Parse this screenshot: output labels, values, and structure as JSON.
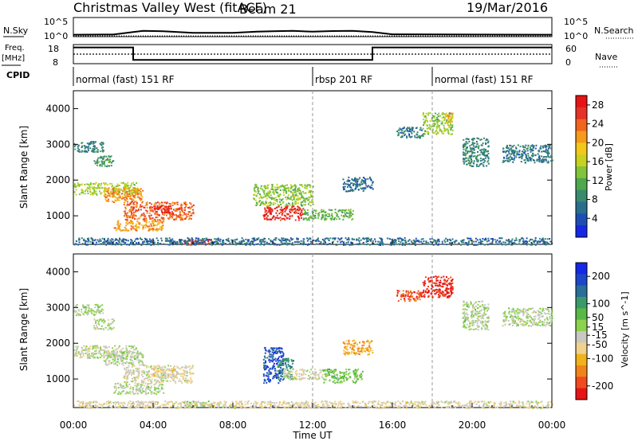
{
  "header": {
    "title": "Christmas Valley West (fitACF)",
    "beam": "Beam 21",
    "date": "19/Mar/2016"
  },
  "strip_labels": {
    "nsky": "N.Sky",
    "nsky_ticks": [
      "10^5",
      "10^0"
    ],
    "nsearch": "N.Search",
    "nsearch_ticks": [
      "10^5",
      "10^0"
    ],
    "freq": "Freq.",
    "freq_unit": "[MHz]",
    "freq_ticks": [
      "18",
      "8"
    ],
    "nave": "Nave",
    "nave_ticks": [
      "60",
      "0"
    ],
    "cpid": "CPID"
  },
  "cpid_segments": [
    {
      "label": "normal (fast) 151 RF",
      "start_h": 0,
      "end_h": 12
    },
    {
      "label": "rbsp 201 RF",
      "start_h": 12,
      "end_h": 18
    },
    {
      "label": "normal (fast) 151 RF",
      "start_h": 18,
      "end_h": 24
    }
  ],
  "x_axis": {
    "label": "Time UT",
    "ticks": [
      "00:00",
      "04:00",
      "08:00",
      "12:00",
      "16:00",
      "20:00",
      "00:00"
    ]
  },
  "colors": {
    "power_scale": [
      "#1428e6",
      "#1e4eb4",
      "#2a6e8c",
      "#3a8a6e",
      "#4ea84e",
      "#82c43a",
      "#c8d21e",
      "#f2c81a",
      "#f59a1a",
      "#f0641e",
      "#e63228",
      "#e61414"
    ],
    "velocity_scale": [
      "#e61414",
      "#f04a1e",
      "#f0841a",
      "#f2b21c",
      "#f0d28c",
      "#c8c8c0",
      "#8cd24e",
      "#5ab846",
      "#3a9a6a",
      "#2a6e9a",
      "#1e46c8",
      "#1428e6"
    ]
  },
  "chart_data": [
    {
      "type": "line",
      "name": "nsky-nsearch-strip",
      "x_unit": "hours UT",
      "log_scale": true,
      "left_ticks": [
        "10^5",
        "10^0"
      ],
      "right_ticks": [
        "10^5",
        "10^0"
      ],
      "series": [
        {
          "name": "N.Sky",
          "x": [
            0,
            2,
            3,
            3.5,
            4.5,
            6,
            8,
            9.2,
            10,
            11,
            12,
            13,
            14,
            15,
            16,
            20,
            24
          ],
          "y_log": [
            0.5,
            0.55,
            1.2,
            1.5,
            1.4,
            1.0,
            1.0,
            1.3,
            1.4,
            1.5,
            1.3,
            1.45,
            1.5,
            1.2,
            0.6,
            0.55,
            0.5
          ]
        },
        {
          "name": "N.Search",
          "x": [
            0,
            24
          ],
          "y_log": [
            0.2,
            0.2
          ]
        }
      ]
    },
    {
      "type": "line",
      "name": "freq-nave-strip",
      "x_unit": "hours UT",
      "series": [
        {
          "name": "Freq. [MHz]",
          "x": [
            0,
            3,
            3,
            15,
            15,
            24
          ],
          "y": [
            16.5,
            16.5,
            10,
            10,
            16.5,
            16.5
          ],
          "ylim": [
            8,
            18
          ]
        },
        {
          "name": "Nave",
          "x": [
            0,
            24
          ],
          "y": [
            30,
            30
          ],
          "ylim": [
            0,
            60
          ]
        }
      ]
    },
    {
      "type": "heatmap",
      "name": "power",
      "xlabel": "Time UT",
      "ylabel": "Slant Range [km]",
      "xlim": [
        0,
        24
      ],
      "ylim": [
        200,
        4500
      ],
      "yticks": [
        1000,
        2000,
        3000,
        4000
      ],
      "colorbar": {
        "label": "Power [dB]",
        "ticks": [
          4,
          8,
          12,
          16,
          20,
          24,
          28
        ],
        "range": [
          0,
          30
        ]
      },
      "regions": [
        {
          "t0": 0.0,
          "t1": 3.2,
          "r0": 1600,
          "r1": 1950,
          "v": 15
        },
        {
          "t0": 1.5,
          "t1": 3.5,
          "r0": 1400,
          "r1": 1800,
          "v": 22
        },
        {
          "t0": 2.5,
          "t1": 6.0,
          "r0": 900,
          "r1": 1400,
          "v": 24
        },
        {
          "t0": 4.0,
          "t1": 5.0,
          "r0": 1100,
          "r1": 1300,
          "v": 28
        },
        {
          "t0": 2.0,
          "t1": 4.5,
          "r0": 600,
          "r1": 900,
          "v": 21
        },
        {
          "t0": 0.0,
          "t1": 1.5,
          "r0": 2800,
          "r1": 3100,
          "v": 8
        },
        {
          "t0": 1.0,
          "t1": 2.0,
          "r0": 2400,
          "r1": 2700,
          "v": 10
        },
        {
          "t0": 9.5,
          "t1": 11.5,
          "r0": 900,
          "r1": 1300,
          "v": 27
        },
        {
          "t0": 9.0,
          "t1": 12.0,
          "r0": 1300,
          "r1": 1900,
          "v": 14
        },
        {
          "t0": 11.5,
          "t1": 14.0,
          "r0": 900,
          "r1": 1200,
          "v": 12
        },
        {
          "t0": 5.5,
          "t1": 7.0,
          "r0": 200,
          "r1": 350,
          "v": 26
        },
        {
          "t0": 0.0,
          "t1": 24.0,
          "r0": 200,
          "r1": 400,
          "v": 6
        },
        {
          "t0": 16.2,
          "t1": 17.5,
          "r0": 3200,
          "r1": 3500,
          "v": 7
        },
        {
          "t0": 17.5,
          "t1": 19.0,
          "r0": 3300,
          "r1": 3900,
          "v": 14
        },
        {
          "t0": 18.6,
          "t1": 19.0,
          "r0": 3600,
          "r1": 3900,
          "v": 20
        },
        {
          "t0": 19.5,
          "t1": 20.8,
          "r0": 2400,
          "r1": 3200,
          "v": 8
        },
        {
          "t0": 21.5,
          "t1": 24.0,
          "r0": 2500,
          "r1": 3000,
          "v": 7
        },
        {
          "t0": 13.5,
          "t1": 15.0,
          "r0": 1700,
          "r1": 2100,
          "v": 6
        }
      ]
    },
    {
      "type": "heatmap",
      "name": "velocity",
      "xlabel": "Time UT",
      "ylabel": "Slant Range [km]",
      "xlim": [
        0,
        24
      ],
      "ylim": [
        200,
        4500
      ],
      "yticks": [
        1000,
        2000,
        3000,
        4000
      ],
      "colorbar": {
        "label": "Velocity [m s^-1]",
        "ticks": [
          200,
          100,
          50,
          15,
          -15,
          -50,
          -100,
          -200
        ],
        "range": [
          -250,
          250
        ]
      },
      "regions": [
        {
          "t0": 0.0,
          "t1": 3.2,
          "r0": 1600,
          "r1": 1950,
          "v": -20
        },
        {
          "t0": 1.5,
          "t1": 3.5,
          "r0": 1400,
          "r1": 1800,
          "v": 0
        },
        {
          "t0": 2.5,
          "t1": 6.0,
          "r0": 900,
          "r1": 1400,
          "v": -30
        },
        {
          "t0": 4.0,
          "t1": 5.0,
          "r0": 1100,
          "r1": 1300,
          "v": -60
        },
        {
          "t0": 2.0,
          "t1": 4.5,
          "r0": 600,
          "r1": 900,
          "v": 0
        },
        {
          "t0": 0.0,
          "t1": 1.5,
          "r0": 2800,
          "r1": 3100,
          "v": 0
        },
        {
          "t0": 1.0,
          "t1": 2.0,
          "r0": 2400,
          "r1": 2700,
          "v": -5
        },
        {
          "t0": 9.5,
          "t1": 10.5,
          "r0": 900,
          "r1": 1900,
          "v": 180
        },
        {
          "t0": 10.2,
          "t1": 11.0,
          "r0": 1000,
          "r1": 1600,
          "v": 120
        },
        {
          "t0": 10.5,
          "t1": 12.5,
          "r0": 1000,
          "r1": 1300,
          "v": -25
        },
        {
          "t0": 12.5,
          "t1": 14.5,
          "r0": 900,
          "r1": 1300,
          "v": 40
        },
        {
          "t0": 5.5,
          "t1": 7.0,
          "r0": 250,
          "r1": 400,
          "v": 30
        },
        {
          "t0": 0.0,
          "t1": 24.0,
          "r0": 200,
          "r1": 400,
          "v": -40
        },
        {
          "t0": 16.2,
          "t1": 17.5,
          "r0": 3200,
          "r1": 3500,
          "v": -180
        },
        {
          "t0": 17.5,
          "t1": 19.0,
          "r0": 3300,
          "r1": 3900,
          "v": -220
        },
        {
          "t0": 19.5,
          "t1": 20.8,
          "r0": 2400,
          "r1": 3200,
          "v": 0
        },
        {
          "t0": 21.5,
          "t1": 24.0,
          "r0": 2500,
          "r1": 3000,
          "v": 0
        },
        {
          "t0": 13.5,
          "t1": 15.0,
          "r0": 1700,
          "r1": 2100,
          "v": -120
        }
      ]
    }
  ]
}
